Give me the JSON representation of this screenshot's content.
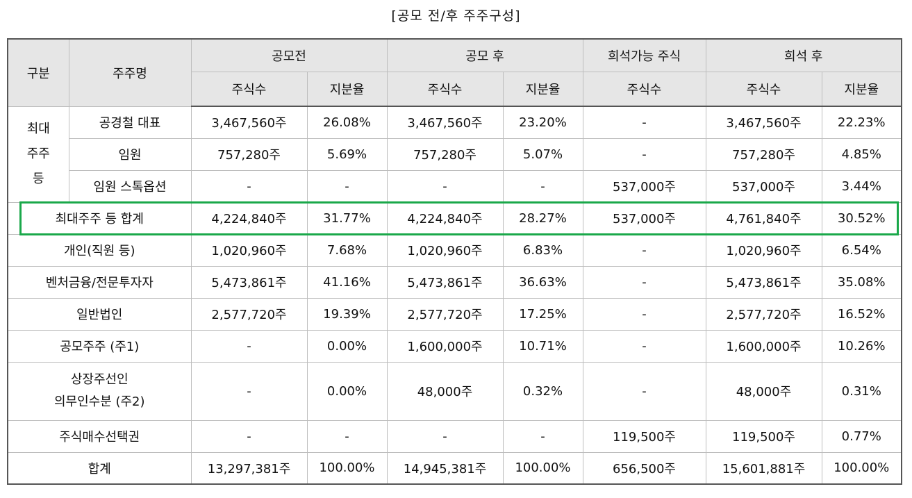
{
  "title": "[공모 전/후 주주구성]",
  "header": {
    "group": "구분",
    "name": "주주명",
    "before": "공모전",
    "after": "공모 후",
    "dilutive": "희석가능 주식",
    "diluted": "희석 후",
    "shares": "주식수",
    "ratio": "지분율"
  },
  "group_major": "최대\n주주\n등",
  "rows": [
    {
      "name": "공경철 대표",
      "c1": "3,467,560주",
      "c2": "26.08%",
      "c3": "3,467,560주",
      "c4": "23.20%",
      "c5": "-",
      "c6": "3,467,560주",
      "c7": "22.23%"
    },
    {
      "name": "임원",
      "c1": "757,280주",
      "c2": "5.69%",
      "c3": "757,280주",
      "c4": "5.07%",
      "c5": "-",
      "c6": "757,280주",
      "c7": "4.85%"
    },
    {
      "name": "임원 스톡옵션",
      "c1": "-",
      "c2": "-",
      "c3": "-",
      "c4": "-",
      "c5": "537,000주",
      "c6": "537,000주",
      "c7": "3.44%"
    },
    {
      "name": "최대주주 등 합계",
      "c1": "4,224,840주",
      "c2": "31.77%",
      "c3": "4,224,840주",
      "c4": "28.27%",
      "c5": "537,000주",
      "c6": "4,761,840주",
      "c7": "30.52%"
    },
    {
      "name": "개인(직원 등)",
      "c1": "1,020,960주",
      "c2": "7.68%",
      "c3": "1,020,960주",
      "c4": "6.83%",
      "c5": "-",
      "c6": "1,020,960주",
      "c7": "6.54%"
    },
    {
      "name": "벤처금융/전문투자자",
      "c1": "5,473,861주",
      "c2": "41.16%",
      "c3": "5,473,861주",
      "c4": "36.63%",
      "c5": "-",
      "c6": "5,473,861주",
      "c7": "35.08%"
    },
    {
      "name": "일반법인",
      "c1": "2,577,720주",
      "c2": "19.39%",
      "c3": "2,577,720주",
      "c4": "17.25%",
      "c5": "-",
      "c6": "2,577,720주",
      "c7": "16.52%"
    },
    {
      "name": "공모주주 (주1)",
      "c1": "-",
      "c2": "0.00%",
      "c3": "1,600,000주",
      "c4": "10.71%",
      "c5": "-",
      "c6": "1,600,000주",
      "c7": "10.26%"
    },
    {
      "name": "상장주선인\n의무인수분 (주2)",
      "c1": "-",
      "c2": "0.00%",
      "c3": "48,000주",
      "c4": "0.32%",
      "c5": "-",
      "c6": "48,000주",
      "c7": "0.31%"
    },
    {
      "name": "주식매수선택권",
      "c1": "-",
      "c2": "-",
      "c3": "-",
      "c4": "-",
      "c5": "119,500주",
      "c6": "119,500주",
      "c7": "0.77%"
    },
    {
      "name": "합계",
      "c1": "13,297,381주",
      "c2": "100.00%",
      "c3": "14,945,381주",
      "c4": "100.00%",
      "c5": "656,500주",
      "c6": "15,601,881주",
      "c7": "100.00%"
    }
  ]
}
